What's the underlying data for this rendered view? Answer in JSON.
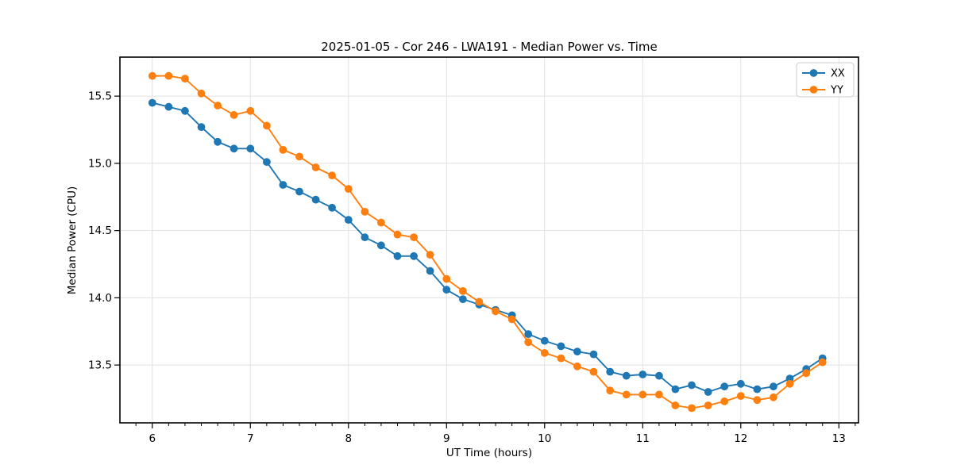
{
  "chart_data": {
    "type": "line",
    "title": "2025-01-05 - Cor 246 - LWA191 - Median Power vs. Time",
    "xlabel": "UT Time (hours)",
    "ylabel": "Median Power (CPU)",
    "xlim": [
      5.67,
      13.2
    ],
    "ylim": [
      13.07,
      15.79
    ],
    "x_major_ticks": [
      6,
      7,
      8,
      9,
      10,
      11,
      12,
      13
    ],
    "x_minor_tick_step": 0.16667,
    "y_major_ticks": [
      13.5,
      14.0,
      14.5,
      15.0,
      15.5
    ],
    "grid": true,
    "legend_position": "upper right",
    "x": [
      6.0,
      6.167,
      6.333,
      6.5,
      6.667,
      6.833,
      7.0,
      7.167,
      7.333,
      7.5,
      7.667,
      7.833,
      8.0,
      8.167,
      8.333,
      8.5,
      8.667,
      8.833,
      9.0,
      9.167,
      9.333,
      9.5,
      9.667,
      9.833,
      10.0,
      10.167,
      10.333,
      10.5,
      10.667,
      10.833,
      11.0,
      11.167,
      11.333,
      11.5,
      11.667,
      11.833,
      12.0,
      12.167,
      12.333,
      12.5,
      12.667,
      12.833
    ],
    "series": [
      {
        "name": "XX",
        "color": "#1f77b4",
        "marker": "circle",
        "values": [
          15.45,
          15.42,
          15.39,
          15.27,
          15.16,
          15.11,
          15.11,
          15.01,
          14.84,
          14.79,
          14.73,
          14.67,
          14.58,
          14.45,
          14.39,
          14.31,
          14.31,
          14.2,
          14.06,
          13.99,
          13.95,
          13.91,
          13.87,
          13.73,
          13.68,
          13.64,
          13.6,
          13.58,
          13.45,
          13.42,
          13.43,
          13.42,
          13.32,
          13.35,
          13.3,
          13.34,
          13.36,
          13.32,
          13.34,
          13.4,
          13.47,
          13.55
        ]
      },
      {
        "name": "YY",
        "color": "#ff7f0e",
        "marker": "circle",
        "values": [
          15.65,
          15.65,
          15.63,
          15.52,
          15.43,
          15.36,
          15.39,
          15.28,
          15.1,
          15.05,
          14.97,
          14.91,
          14.81,
          14.64,
          14.56,
          14.47,
          14.45,
          14.32,
          14.14,
          14.05,
          13.97,
          13.9,
          13.84,
          13.67,
          13.59,
          13.55,
          13.49,
          13.45,
          13.31,
          13.28,
          13.28,
          13.28,
          13.2,
          13.18,
          13.2,
          13.23,
          13.27,
          13.24,
          13.26,
          13.36,
          13.44,
          13.52
        ]
      }
    ]
  },
  "style": {
    "grid_color": "#e1e1e1",
    "spine_color": "#000000",
    "legend_border_color": "#cccccc",
    "background": "#ffffff"
  }
}
